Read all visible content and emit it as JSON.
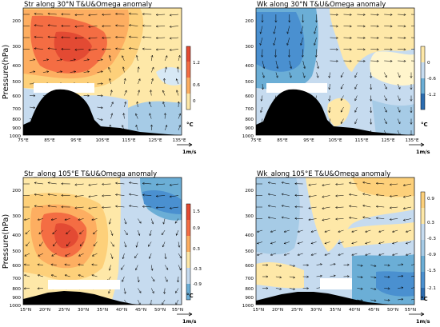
{
  "chart_data": [
    {
      "type": "heatmap",
      "title": "Str along 30°N T&U&Omega anomaly",
      "ylabel": "Pressure(hPa)",
      "xlabel": "",
      "x_ticks": [
        "75°E",
        "85°E",
        "95°E",
        "105°E",
        "115°E",
        "125°E",
        "135°E"
      ],
      "y_ticks": [
        "200",
        "300",
        "400",
        "500",
        "600",
        "700",
        "800",
        "900",
        "1000"
      ],
      "colorbar_ticks": [
        "1.2",
        "0.6",
        "0"
      ],
      "colorbar_unit": "°C",
      "vector_ref": "1m/s",
      "colors": {
        "warm_max": "#d7301f",
        "warm": "#fdae61",
        "warm_light": "#fee8a8",
        "cool_light": "#c6dbef",
        "cool": "#6baed6"
      }
    },
    {
      "type": "heatmap",
      "title": "Wk along 30°N T&U&Omega anomaly",
      "ylabel": "",
      "xlabel": "",
      "x_ticks": [
        "75°E",
        "85°E",
        "95°E",
        "105°E",
        "115°E",
        "125°E",
        "135°E"
      ],
      "y_ticks": [
        "200",
        "300",
        "400",
        "500",
        "600",
        "700",
        "800",
        "900",
        "1000"
      ],
      "colorbar_ticks": [
        "0",
        "-0.6",
        "-1.2"
      ],
      "colorbar_unit": "°C",
      "vector_ref": "1m/s",
      "colors": {
        "warm_light": "#fee8a8",
        "cool_light": "#c6dbef",
        "cool": "#6baed6",
        "cool_max": "#2b6cb0"
      }
    },
    {
      "type": "heatmap",
      "title": "Str_along 105°E T&U&Omega anomaly",
      "ylabel": "Pressure(hPa)",
      "xlabel": "",
      "x_ticks": [
        "15°N",
        "20°N",
        "25°N",
        "30°N",
        "35°N",
        "40°N",
        "45°N",
        "50°N",
        "55°N"
      ],
      "y_ticks": [
        "200",
        "300",
        "400",
        "500",
        "600",
        "700",
        "800",
        "900",
        "1000"
      ],
      "colorbar_ticks": [
        "1.5",
        "0.9",
        "0.3",
        "-0.3",
        "-0.9"
      ],
      "colorbar_unit": "°C",
      "vector_ref": "1m/s",
      "colors": {
        "warm_max": "#d7301f",
        "warm": "#fdae61",
        "warm_light": "#fee8a8",
        "cool_light": "#c6dbef",
        "cool": "#6baed6"
      }
    },
    {
      "type": "heatmap",
      "title": "Wk_along 105°E T&U&Omega anomaly",
      "ylabel": "",
      "xlabel": "",
      "x_ticks": [
        "15°N",
        "20°N",
        "25°N",
        "30°N",
        "35°N",
        "40°N",
        "45°N",
        "50°N",
        "55°N"
      ],
      "y_ticks": [
        "200",
        "300",
        "400",
        "500",
        "600",
        "700",
        "800",
        "900",
        "1000"
      ],
      "colorbar_ticks": [
        "0.9",
        "0.3",
        "-0.3",
        "-0.9",
        "-1.5",
        "-2.1"
      ],
      "colorbar_unit": "°C",
      "vector_ref": "1m/s",
      "colors": {
        "warm_light": "#fee8a8",
        "cool_light": "#c6dbef",
        "cool": "#6baed6",
        "cool_max": "#2b6cb0"
      }
    }
  ]
}
